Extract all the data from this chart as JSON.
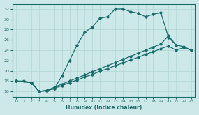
{
  "xlabel": "Humidex (Indice chaleur)",
  "xlim": [
    -0.5,
    23.5
  ],
  "ylim": [
    15,
    33
  ],
  "yticks": [
    16,
    18,
    20,
    22,
    24,
    26,
    28,
    30,
    32
  ],
  "xticks": [
    0,
    1,
    2,
    3,
    4,
    5,
    6,
    7,
    8,
    9,
    10,
    11,
    12,
    13,
    14,
    15,
    16,
    17,
    18,
    19,
    20,
    21,
    22,
    23
  ],
  "bg_color": "#cce8e8",
  "line_color": "#1a6b6b",
  "grid_color": "#b0d4d4",
  "line1_x": [
    0,
    1,
    2,
    3,
    4,
    5,
    6,
    7,
    8,
    9,
    10,
    11,
    12,
    13,
    14,
    15,
    16,
    17,
    18,
    19,
    20,
    21
  ],
  "line1_y": [
    18,
    18,
    17.7,
    16,
    16.2,
    16.5,
    19,
    22,
    25,
    27.5,
    28.5,
    30.2,
    30.5,
    32,
    32,
    31.5,
    31.2,
    30.5,
    31,
    31.3,
    26.5,
    25.0
  ],
  "line2_x": [
    0,
    2,
    3,
    4,
    5,
    6,
    7,
    8,
    9,
    10,
    11,
    12,
    13,
    14,
    15,
    16,
    17,
    18,
    19,
    20,
    21,
    22,
    23
  ],
  "line2_y": [
    18,
    17.7,
    16,
    16.2,
    16.8,
    17.4,
    18.0,
    18.6,
    19.2,
    19.8,
    20.4,
    21.0,
    21.6,
    22.2,
    22.8,
    23.4,
    24.0,
    24.6,
    25.2,
    26.8,
    25.0,
    24.7,
    24.0
  ],
  "line3_x": [
    0,
    2,
    3,
    4,
    5,
    6,
    7,
    8,
    9,
    10,
    11,
    12,
    13,
    14,
    15,
    16,
    17,
    18,
    19,
    20,
    21,
    22,
    23
  ],
  "line3_y": [
    18,
    17.7,
    16,
    16.1,
    16.6,
    17.1,
    17.7,
    18.2,
    18.8,
    19.3,
    19.9,
    20.4,
    21.0,
    21.5,
    22.1,
    22.6,
    23.2,
    23.7,
    24.3,
    24.8,
    24.0,
    24.5,
    24.0
  ]
}
